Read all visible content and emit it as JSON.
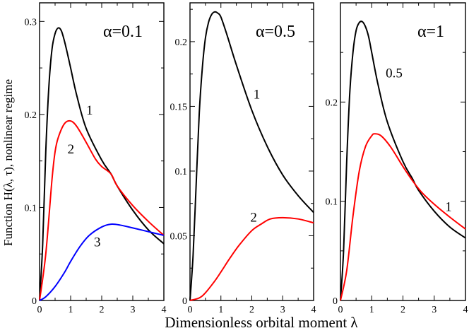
{
  "figure": {
    "xlabel": "Dimensionless orbital moment λ",
    "ylabel": "Function H(λ, τ), nonlinear regime"
  },
  "chart_data": [
    {
      "type": "line",
      "title": "α=0.1",
      "xlim": [
        0,
        4
      ],
      "ylim": [
        0,
        0.32
      ],
      "x_ticks": [
        "0",
        "1",
        "2",
        "3",
        "4"
      ],
      "y_ticks": [
        "0",
        "0.1",
        "0.2",
        "0.3"
      ],
      "y_tick_values": [
        0,
        0.1,
        0.2,
        0.3
      ],
      "grid": false,
      "series": [
        {
          "name": "1",
          "color": "#000000",
          "x": [
            0,
            0.1,
            0.2,
            0.3,
            0.4,
            0.5,
            0.6,
            0.7,
            0.8,
            0.9,
            1.0,
            1.2,
            1.5,
            2.0,
            2.3,
            2.5,
            3.0,
            3.5,
            4.0
          ],
          "y": [
            0,
            0.06,
            0.16,
            0.23,
            0.27,
            0.287,
            0.293,
            0.29,
            0.279,
            0.265,
            0.25,
            0.22,
            0.185,
            0.151,
            0.136,
            0.123,
            0.097,
            0.076,
            0.061
          ]
        },
        {
          "name": "2",
          "color": "#ff0000",
          "x": [
            0,
            0.2,
            0.4,
            0.5,
            0.6,
            0.8,
            1.0,
            1.2,
            1.5,
            1.8,
            2.0,
            2.3,
            2.5,
            3.0,
            3.5,
            4.0
          ],
          "y": [
            0,
            0.05,
            0.13,
            0.16,
            0.175,
            0.19,
            0.193,
            0.187,
            0.17,
            0.152,
            0.144,
            0.136,
            0.123,
            0.102,
            0.085,
            0.07
          ]
        },
        {
          "name": "3",
          "color": "#0000ff",
          "x": [
            0,
            0.2,
            0.5,
            0.8,
            1.0,
            1.3,
            1.6,
            2.0,
            2.3,
            2.6,
            3.0,
            3.5,
            4.0
          ],
          "y": [
            0,
            0.004,
            0.015,
            0.03,
            0.042,
            0.058,
            0.07,
            0.079,
            0.082,
            0.081,
            0.078,
            0.074,
            0.07
          ]
        }
      ],
      "annotations": [
        {
          "text": "1",
          "x": 1.5,
          "y": 0.2
        },
        {
          "text": "2",
          "x": 0.9,
          "y": 0.158
        },
        {
          "text": "3",
          "x": 1.75,
          "y": 0.058
        }
      ]
    },
    {
      "type": "line",
      "title": "α=0.5",
      "xlim": [
        0,
        4
      ],
      "ylim": [
        0,
        0.23
      ],
      "x_ticks": [
        "0",
        "1",
        "2",
        "3",
        "4"
      ],
      "y_ticks": [
        "0",
        "0.05",
        "0.1",
        "0.15",
        "0.2"
      ],
      "y_tick_values": [
        0,
        0.05,
        0.1,
        0.15,
        0.2
      ],
      "grid": false,
      "series": [
        {
          "name": "1",
          "color": "#000000",
          "x": [
            0,
            0.1,
            0.2,
            0.3,
            0.4,
            0.5,
            0.6,
            0.7,
            0.8,
            0.9,
            1.0,
            1.2,
            1.5,
            2.0,
            2.5,
            3.0,
            3.5,
            4.0
          ],
          "y": [
            0,
            0.035,
            0.09,
            0.145,
            0.18,
            0.203,
            0.215,
            0.221,
            0.223,
            0.222,
            0.219,
            0.205,
            0.182,
            0.147,
            0.119,
            0.097,
            0.081,
            0.068
          ]
        },
        {
          "name": "2",
          "color": "#ff0000",
          "x": [
            0,
            0.3,
            0.5,
            0.8,
            1.0,
            1.3,
            1.6,
            2.0,
            2.3,
            2.6,
            3.0,
            3.5,
            4.0
          ],
          "y": [
            0,
            0.002,
            0.006,
            0.015,
            0.022,
            0.033,
            0.043,
            0.054,
            0.059,
            0.063,
            0.064,
            0.063,
            0.06
          ]
        }
      ],
      "annotations": [
        {
          "text": "1",
          "x": 2.05,
          "y": 0.156
        },
        {
          "text": "2",
          "x": 1.95,
          "y": 0.061
        }
      ]
    },
    {
      "type": "line",
      "title": "α=1",
      "xlim": [
        0,
        4
      ],
      "ylim": [
        0,
        0.3
      ],
      "x_ticks": [
        "0",
        "1",
        "2",
        "3",
        "4"
      ],
      "y_ticks": [
        "0",
        "0.1",
        "0.2"
      ],
      "y_tick_values": [
        0,
        0.1,
        0.2
      ],
      "grid": false,
      "series": [
        {
          "name": "0.5",
          "color": "#000000",
          "x": [
            0,
            0.1,
            0.2,
            0.3,
            0.4,
            0.5,
            0.6,
            0.7,
            0.8,
            0.9,
            1.0,
            1.2,
            1.5,
            2.0,
            2.3,
            2.5,
            3.0,
            3.5,
            4.0
          ],
          "y": [
            0,
            0.05,
            0.14,
            0.21,
            0.25,
            0.272,
            0.28,
            0.281,
            0.276,
            0.266,
            0.25,
            0.218,
            0.18,
            0.14,
            0.123,
            0.111,
            0.09,
            0.074,
            0.063
          ]
        },
        {
          "name": "1",
          "color": "#ff0000",
          "x": [
            0,
            0.2,
            0.4,
            0.6,
            0.8,
            1.0,
            1.1,
            1.3,
            1.6,
            2.0,
            2.3,
            2.6,
            3.0,
            3.5,
            4.0
          ],
          "y": [
            0,
            0.03,
            0.085,
            0.13,
            0.155,
            0.166,
            0.168,
            0.166,
            0.155,
            0.135,
            0.121,
            0.109,
            0.097,
            0.084,
            0.072
          ]
        }
      ],
      "annotations": [
        {
          "text": "0.5",
          "x": 1.45,
          "y": 0.225
        },
        {
          "text": "1",
          "x": 3.35,
          "y": 0.09
        }
      ]
    }
  ]
}
